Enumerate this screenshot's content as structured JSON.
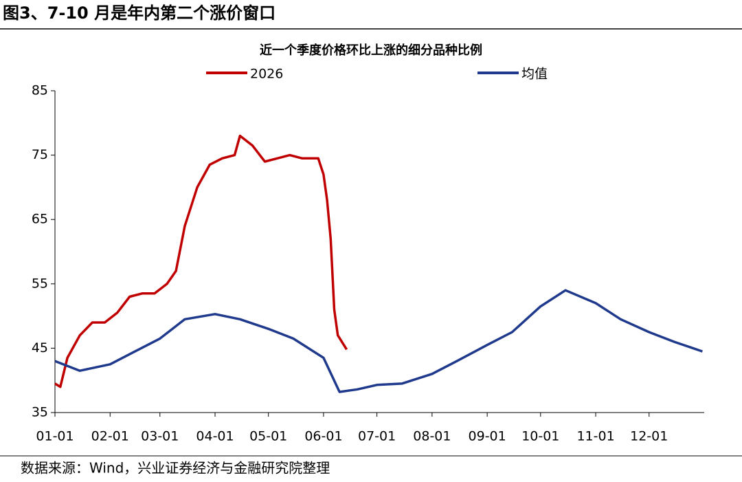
{
  "header": {
    "title": "图3、7-10 月是年内第二个涨价窗口"
  },
  "footer": {
    "source": "数据来源：Wind，兴业证券经济与金融研究院整理"
  },
  "chart_data": {
    "type": "line",
    "title": "近一个季度价格环比上涨的细分品种比例",
    "xlim": [
      "01-01",
      "12-31"
    ],
    "xticks": [
      "01-01",
      "02-01",
      "03-01",
      "04-01",
      "05-01",
      "06-01",
      "07-01",
      "08-01",
      "09-01",
      "10-01",
      "11-01",
      "12-01"
    ],
    "ylim": [
      35,
      85
    ],
    "yticks": [
      35,
      45,
      55,
      65,
      75,
      85
    ],
    "series": [
      {
        "name": "2026",
        "color": "#c00000",
        "x": [
          "01-01",
          "01-04",
          "01-08",
          "01-15",
          "01-22",
          "01-29",
          "02-05",
          "02-12",
          "02-19",
          "02-26",
          "03-05",
          "03-10",
          "03-15",
          "03-22",
          "03-29",
          "04-05",
          "04-12",
          "04-15",
          "04-22",
          "04-29",
          "05-06",
          "05-13",
          "05-20",
          "05-29",
          "06-01",
          "06-03",
          "06-05",
          "06-07",
          "06-09",
          "06-14"
        ],
        "values": [
          39.5,
          39,
          43.5,
          47,
          49,
          49,
          50.5,
          53,
          53.5,
          53.5,
          55,
          57,
          64,
          70,
          73.5,
          74.5,
          75,
          78,
          76.5,
          74,
          74.5,
          75,
          74.5,
          74.5,
          72,
          68,
          62,
          51,
          47,
          44.8
        ]
      },
      {
        "name": "均值",
        "color": "#1f3a8c",
        "x": [
          "01-01",
          "01-15",
          "02-01",
          "02-15",
          "03-01",
          "03-15",
          "04-01",
          "04-15",
          "05-01",
          "05-15",
          "06-01",
          "06-10",
          "06-20",
          "07-01",
          "07-15",
          "08-01",
          "08-15",
          "09-01",
          "09-15",
          "10-01",
          "10-15",
          "11-01",
          "11-15",
          "12-01",
          "12-15",
          "12-31"
        ],
        "values": [
          43,
          41.5,
          42.5,
          44.5,
          46.5,
          49.5,
          50.3,
          49.5,
          48,
          46.5,
          43.5,
          38.2,
          38.6,
          39.3,
          39.5,
          41,
          43,
          45.5,
          47.5,
          51.5,
          54,
          52,
          49.5,
          47.5,
          46,
          44.5
        ]
      }
    ]
  }
}
